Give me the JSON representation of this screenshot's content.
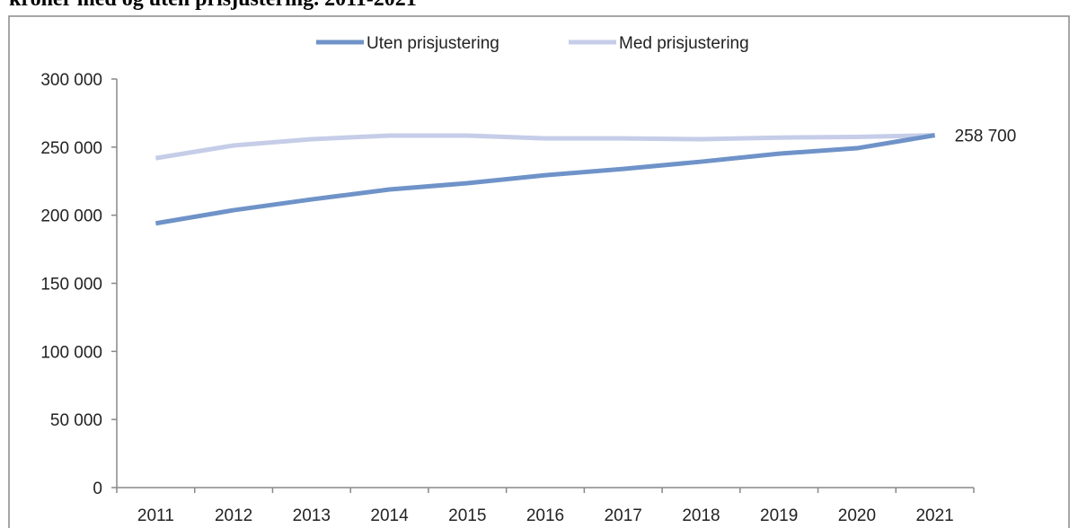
{
  "chart_data": {
    "type": "line",
    "title": "kroner med og uten prisjustering. 2011-2021",
    "categories": [
      "2011",
      "2012",
      "2013",
      "2014",
      "2015",
      "2016",
      "2017",
      "2018",
      "2019",
      "2020",
      "2021"
    ],
    "series": [
      {
        "name": "Uten prisjustering",
        "color": "#6f93c8",
        "values": [
          194000,
          203700,
          211600,
          218900,
          223500,
          229400,
          234000,
          239300,
          245200,
          249200,
          258700
        ],
        "value_labels": [
          null,
          null,
          null,
          null,
          null,
          null,
          null,
          null,
          null,
          null,
          "258 700"
        ]
      },
      {
        "name": "Med prisjustering",
        "color": "#c5cde8",
        "values": [
          241900,
          251200,
          255800,
          258500,
          258500,
          256400,
          256400,
          255800,
          257000,
          257500,
          258700
        ]
      }
    ],
    "ylim": [
      0,
      300000
    ],
    "yticks": [
      {
        "value": 0,
        "label": "0"
      },
      {
        "value": 50000,
        "label": "50 000"
      },
      {
        "value": 100000,
        "label": "100 000"
      },
      {
        "value": 150000,
        "label": "150 000"
      },
      {
        "value": 200000,
        "label": "200 000"
      },
      {
        "value": 250000,
        "label": "250 000"
      },
      {
        "value": 300000,
        "label": "300 000"
      }
    ],
    "legend": "top"
  }
}
